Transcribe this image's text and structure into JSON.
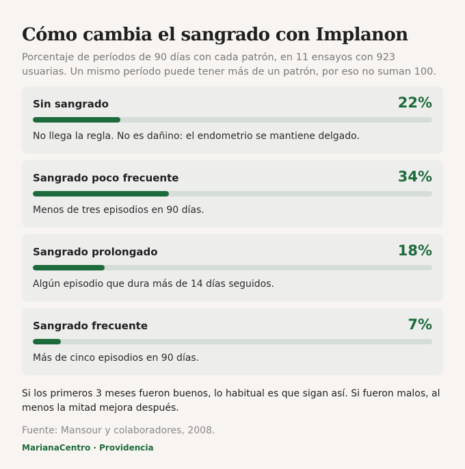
{
  "title": "Cómo cambia el sangrado con Implanon",
  "subtitle": "Porcentaje de períodos de 90 días con cada patrón, en 11 ensayos con 923 usuarias. Un mismo período puede tener más de un patrón, por eso no suman 100.",
  "colors": {
    "accent": "#1d6b3c",
    "track": "#d6ddd8",
    "card": "#edeeec",
    "background": "#f7f4f1"
  },
  "chart_data": {
    "type": "bar",
    "orientation": "horizontal",
    "unit": "%",
    "xlim": [
      0,
      100
    ],
    "categories": [
      "Sin sangrado",
      "Sangrado poco frecuente",
      "Sangrado prolongado",
      "Sangrado frecuente"
    ],
    "values": [
      22,
      34,
      18,
      7
    ],
    "value_labels": [
      "22%",
      "34%",
      "18%",
      "7%"
    ],
    "descriptions": [
      "No llega la regla. No es dañino: el endometrio se mantiene delgado.",
      "Menos de tres episodios en 90 días.",
      "Algún episodio que dura más de 14 días seguidos.",
      "Más de cinco episodios en 90 días."
    ]
  },
  "note": "Si los primeros 3 meses fueron buenos, lo habitual es que sigan así. Si fueron malos, al menos la mitad mejora después.",
  "source": "Fuente: Mansour y colaboradores, 2008.",
  "brand": "MarianaCentro · Providencia"
}
